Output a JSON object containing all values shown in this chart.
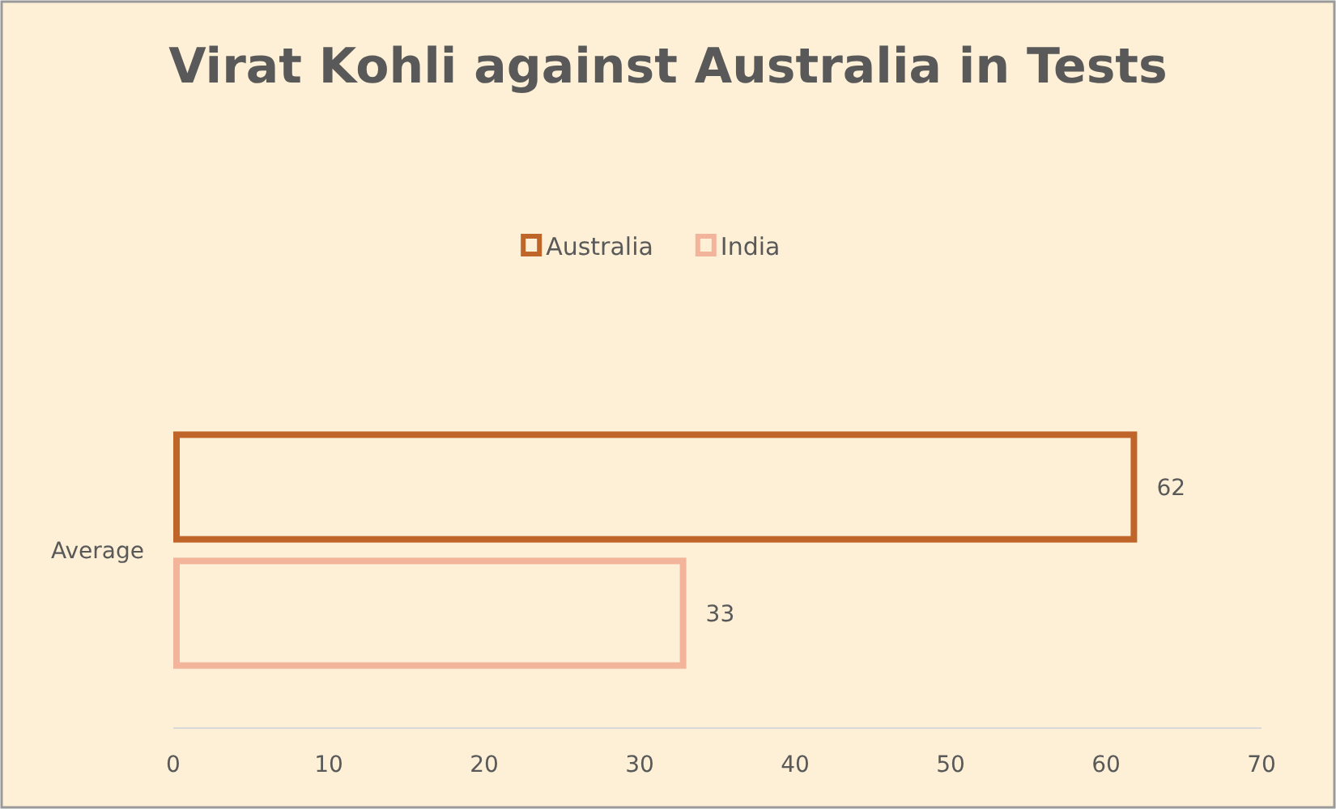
{
  "chart_data": {
    "type": "bar",
    "orientation": "horizontal",
    "title": "Virat Kohli against Australia in Tests",
    "categories": [
      "Average"
    ],
    "series": [
      {
        "name": "Australia",
        "color": "#c0652a",
        "values": [
          62
        ]
      },
      {
        "name": "India",
        "color": "#f2b59c",
        "values": [
          33
        ]
      }
    ],
    "xlim": [
      0,
      70
    ],
    "xticks": [
      0,
      10,
      20,
      30,
      40,
      50,
      60,
      70
    ],
    "data_labels": true,
    "legend": "top",
    "grid": false
  }
}
